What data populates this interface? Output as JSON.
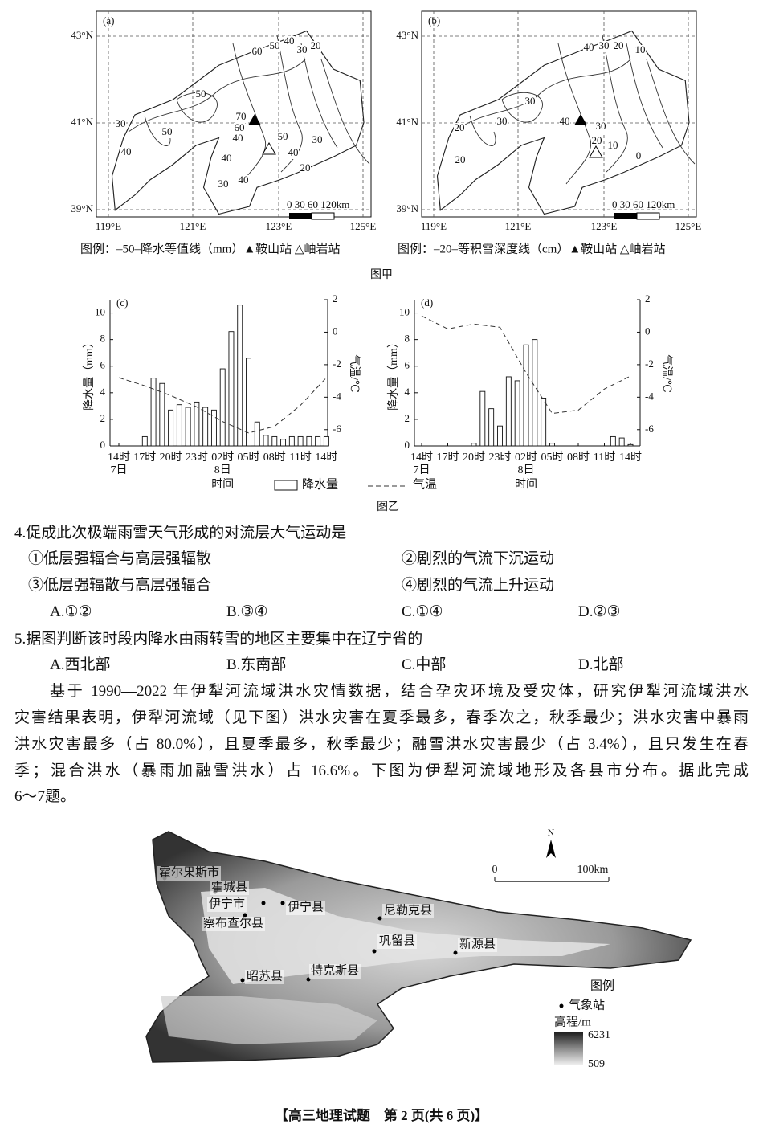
{
  "figure_jia": {
    "caption": "图甲",
    "maps": [
      {
        "label": "(a)",
        "lat_ticks": [
          "43°N",
          "41°N",
          "39°N"
        ],
        "lon_ticks": [
          "119°E",
          "121°E",
          "123°E",
          "125°E"
        ],
        "contour_labels": [
          60,
          50,
          40,
          30,
          20,
          50,
          70,
          60,
          40,
          50,
          30,
          50,
          40,
          40,
          40,
          30,
          20,
          30,
          40
        ],
        "scale": "0 30 60 120km",
        "legend": "图例：–50–降水等值线（mm）▲鞍山站 △岫岩站"
      },
      {
        "label": "(b)",
        "lat_ticks": [
          "43°N",
          "41°N",
          "39°N"
        ],
        "lon_ticks": [
          "119°E",
          "121°E",
          "123°E",
          "125°E"
        ],
        "contour_labels": [
          40,
          30,
          20,
          10,
          30,
          30,
          20,
          20,
          40,
          30,
          20,
          10,
          0
        ],
        "scale": "0 30 60 120km",
        "legend": "图例：–20–等积雪深度线（cm）▲鞍山站 △岫岩站"
      }
    ]
  },
  "figure_yi": {
    "caption": "图乙",
    "x_label": "时间",
    "x_ticks": [
      "14时",
      "17时",
      "20时",
      "23时",
      "02时",
      "05时",
      "08时",
      "11时",
      "14时"
    ],
    "day_labels": [
      "7日",
      "8日"
    ],
    "legend": [
      "降水量",
      "气温"
    ],
    "charts": [
      {
        "label": "(c)",
        "y_label": "降水量（mm）",
        "y2_label": "气温/℃",
        "ylim": [
          0,
          11
        ],
        "yticks": [
          0,
          2,
          4,
          6,
          8,
          10
        ],
        "y2lim": [
          -7,
          2
        ],
        "y2ticks": [
          -6,
          -4,
          -2,
          0,
          2
        ],
        "precipitation": [
          null,
          null,
          null,
          0.7,
          5.1,
          4.7,
          2.7,
          3.1,
          2.9,
          3.3,
          2.9,
          2.7,
          5.8,
          8.6,
          10.6,
          6.6,
          1.8,
          0.8,
          0.7,
          0.5,
          0.7,
          0.7,
          0.7,
          0.7,
          0.7
        ],
        "temperature": [
          -2.8,
          -3.3,
          -3.9,
          -4.6,
          -5.5,
          -6.2,
          -5.8,
          -4.5,
          -2.8
        ]
      },
      {
        "label": "(d)",
        "y_label": "降水量（mm）",
        "y2_label": "气温/℃",
        "ylim": [
          0,
          11
        ],
        "yticks": [
          0,
          2,
          4,
          6,
          8,
          10
        ],
        "y2lim": [
          -7,
          2
        ],
        "y2ticks": [
          -6,
          -4,
          -2,
          0,
          2
        ],
        "precipitation": [
          null,
          null,
          null,
          null,
          null,
          null,
          0.2,
          4.1,
          2.8,
          1.5,
          5.2,
          4.9,
          7.6,
          8.0,
          3.6,
          0.2,
          null,
          null,
          null,
          null,
          null,
          null,
          0.7,
          0.6,
          0.1
        ],
        "temperature": [
          1.0,
          0.2,
          0.5,
          0.3,
          -2.5,
          -5.0,
          -4.8,
          -3.5,
          -2.7
        ]
      }
    ]
  },
  "questions": [
    {
      "stem": "4.促成此次极端雨雪天气形成的对流层大气运动是",
      "statements": [
        "①低层强辐合与高层强辐散",
        "②剧烈的气流下沉运动",
        "③低层强辐散与高层强辐合",
        "④剧烈的气流上升运动"
      ],
      "options": [
        "A.①②",
        "B.③④",
        "C.①④",
        "D.②③"
      ]
    },
    {
      "stem": "5.据图判断该时段内降水由雨转雪的地区主要集中在辽宁省的",
      "options": [
        "A.西北部",
        "B.东南部",
        "C.中部",
        "D.北部"
      ]
    }
  ],
  "passage": [
    "基于 1990—2022 年伊犁河流域洪水灾情数据，结合孕灾环境及受灾体，研究伊犁河流域洪水",
    "灾害结果表明，伊犁河流域（见下图）洪水灾害在夏季最多，春季次之，秋季最少；洪水灾害中暴雨",
    "洪水灾害最多（占 80.0%），且夏季最多，秋季最少；融雪洪水灾害最少（占 3.4%），且只发生在春",
    "季；混合洪水（暴雨加融雪洪水）占 16.6%。下图为伊犁河流域地形及各县市分布。据此完成",
    "6～7题。"
  ],
  "map": {
    "places": [
      "霍尔果斯市",
      "霍城县",
      "伊宁市",
      "伊宁县",
      "察布查尔县",
      "尼勒克县",
      "巩留县",
      "新源县",
      "昭苏县",
      "特克斯县"
    ],
    "north": "N",
    "scale_labels": [
      "0",
      "100km"
    ],
    "legend_title": "图例",
    "legend_station": "气象站",
    "elevation_title": "高程/m",
    "elevation_labels": [
      "6231",
      "509"
    ]
  },
  "footer": "【高三地理试题　第 2 页(共 6 页)】"
}
